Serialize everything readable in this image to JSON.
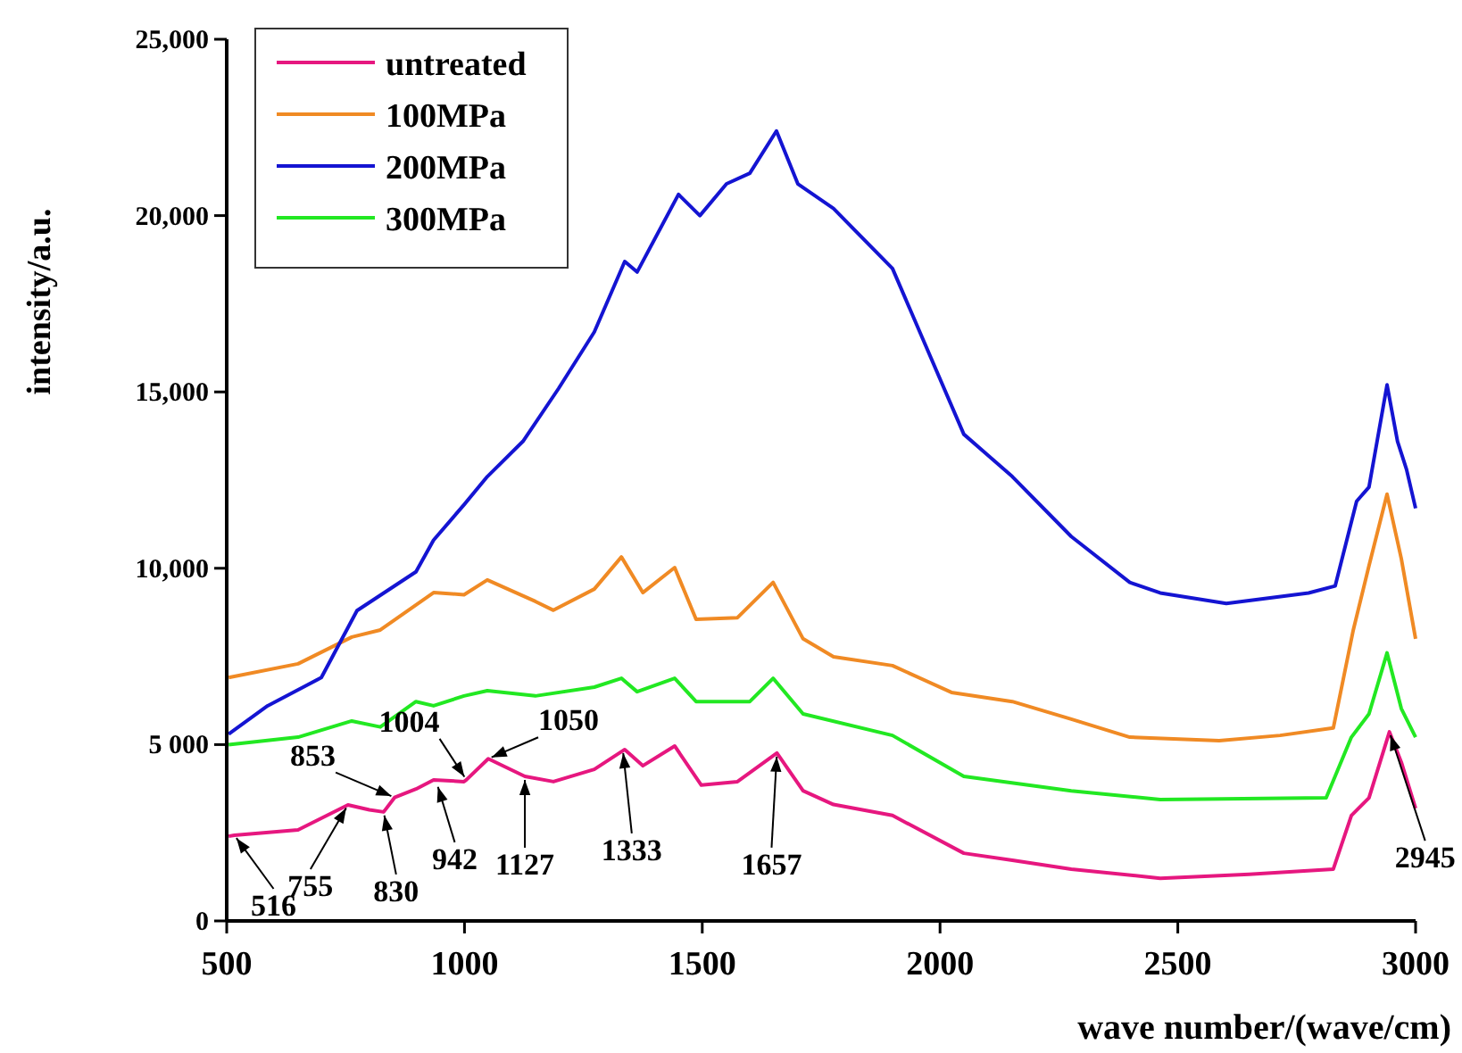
{
  "chart_data": {
    "type": "line",
    "xlabel": "wave number/(wave/cm)",
    "ylabel": "intensity/a.u.",
    "xlim": [
      500,
      3000
    ],
    "xticks": [
      500,
      1000,
      1500,
      2000,
      2500,
      3000
    ],
    "ylim": [
      0,
      25000
    ],
    "yticks": [
      0,
      {
        "value": 5000,
        "label": "5 000"
      },
      {
        "value": 10000,
        "label": "10,000"
      },
      {
        "value": 15000,
        "label": "15,000"
      },
      {
        "value": 20000,
        "label": "20,000"
      },
      {
        "value": 25000,
        "label": "25,000"
      }
    ],
    "legend": "top left",
    "grid": false,
    "marker": "none",
    "line_style": "solid",
    "series": [
      {
        "name": "untreated",
        "color": "#e6177f",
        "x": [
          504,
          516,
          650,
          755,
          800,
          830,
          853,
          898,
          935,
          999,
          1004,
          1050,
          1127,
          1187,
          1273,
          1337,
          1375,
          1442,
          1498,
          1574,
          1657,
          1712,
          1776,
          1900,
          2050,
          2152,
          2276,
          2463,
          2650,
          2827,
          2865,
          2902,
          2945,
          2970,
          3000
        ],
        "values": [
          2400,
          2430,
          2580,
          3290,
          3150,
          3090,
          3500,
          3740,
          4000,
          3950,
          4000,
          4600,
          4100,
          3950,
          4300,
          4860,
          4400,
          4960,
          3850,
          3950,
          4760,
          3690,
          3300,
          2990,
          1920,
          1720,
          1470,
          1210,
          1320,
          1470,
          2990,
          3490,
          5360,
          4500,
          3190
        ]
      },
      {
        "name": "100MPa",
        "color": "#f08a24",
        "x": [
          504,
          650,
          763,
          823,
          935,
          999,
          1048,
          1149,
          1187,
          1273,
          1330,
          1375,
          1442,
          1487,
          1574,
          1649,
          1712,
          1776,
          1900,
          2024,
          2152,
          2276,
          2399,
          2587,
          2715,
          2827,
          2869,
          2902,
          2940,
          2970,
          3000
        ],
        "values": [
          6900,
          7290,
          8050,
          8250,
          9310,
          9250,
          9670,
          9060,
          8810,
          9410,
          10320,
          9310,
          10020,
          8550,
          8600,
          9600,
          8000,
          7490,
          7240,
          6480,
          6220,
          5720,
          5210,
          5110,
          5260,
          5470,
          8250,
          10070,
          12100,
          10270,
          8000
        ]
      },
      {
        "name": "200MPa",
        "color": "#1414d2",
        "x": [
          504,
          586,
          699,
          774,
          898,
          935,
          999,
          1048,
          1123,
          1198,
          1273,
          1337,
          1363,
          1450,
          1495,
          1551,
          1600,
          1656,
          1701,
          1776,
          1900,
          2050,
          2152,
          2276,
          2399,
          2463,
          2602,
          2775,
          2831,
          2876,
          2902,
          2940,
          2962,
          2981,
          3000
        ],
        "values": [
          5300,
          6100,
          6900,
          8800,
          9900,
          10800,
          11800,
          12600,
          13600,
          15100,
          16700,
          18700,
          18400,
          20600,
          20000,
          20900,
          21200,
          22400,
          20900,
          20200,
          18500,
          13800,
          12600,
          10900,
          9600,
          9300,
          9000,
          9300,
          9500,
          11900,
          12300,
          15200,
          13600,
          12800,
          11700
        ]
      },
      {
        "name": "300MPa",
        "color": "#22e822",
        "x": [
          504,
          650,
          763,
          823,
          898,
          935,
          999,
          1048,
          1149,
          1273,
          1330,
          1363,
          1442,
          1487,
          1600,
          1649,
          1712,
          1900,
          2050,
          2276,
          2463,
          2812,
          2865,
          2902,
          2940,
          2970,
          3000
        ],
        "values": [
          5000,
          5210,
          5670,
          5500,
          6220,
          6100,
          6380,
          6530,
          6380,
          6630,
          6880,
          6500,
          6880,
          6220,
          6220,
          6880,
          5870,
          5260,
          4100,
          3690,
          3440,
          3490,
          5210,
          5870,
          7600,
          6020,
          5210
        ]
      }
    ],
    "annotations": [
      {
        "text": "516",
        "x": 516,
        "y": 2430
      },
      {
        "text": "755",
        "x": 755,
        "y": 3290
      },
      {
        "text": "830",
        "x": 830,
        "y": 3090
      },
      {
        "text": "853",
        "x": 853,
        "y": 3500
      },
      {
        "text": "942",
        "x": 942,
        "y": 3900
      },
      {
        "text": "1004",
        "x": 1004,
        "y": 4000
      },
      {
        "text": "1050",
        "x": 1050,
        "y": 4600
      },
      {
        "text": "1127",
        "x": 1127,
        "y": 4100
      },
      {
        "text": "1333",
        "x": 1333,
        "y": 4860
      },
      {
        "text": "1657",
        "x": 1657,
        "y": 4760
      },
      {
        "text": "2945",
        "x": 2945,
        "y": 5360
      }
    ]
  }
}
